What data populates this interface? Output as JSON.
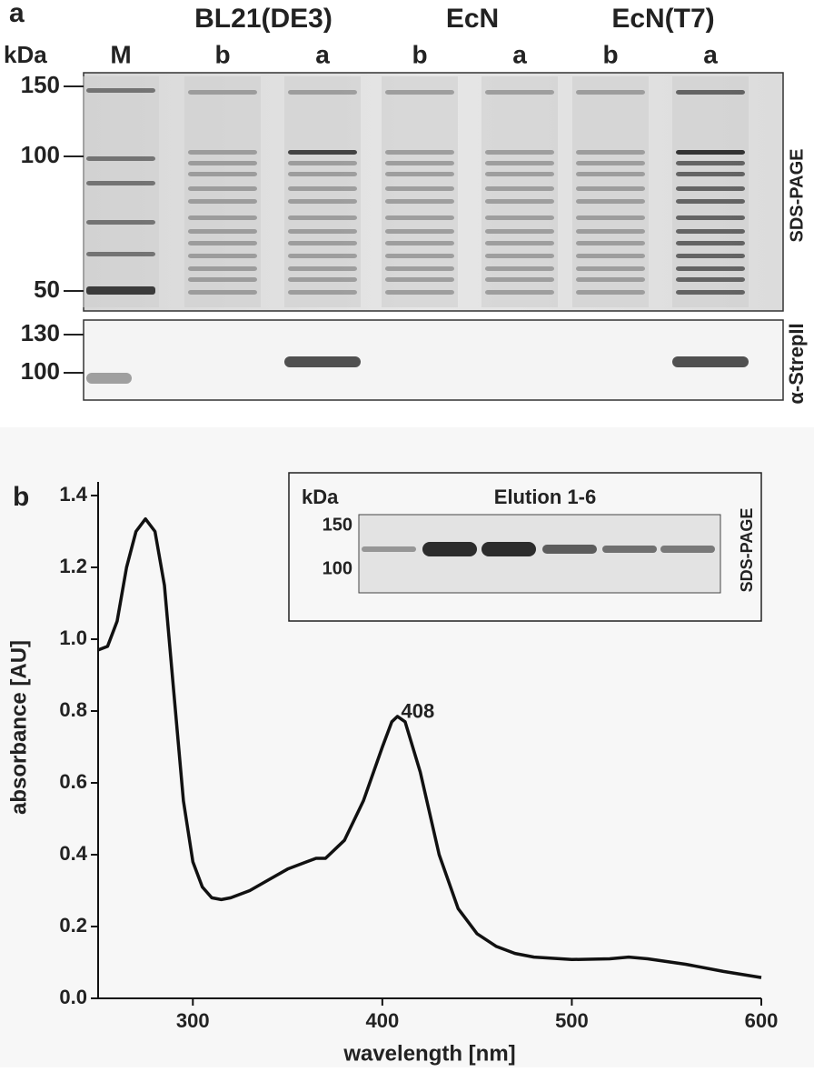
{
  "panel_a": {
    "label": "a",
    "strains": [
      "BL21(DE3)",
      "EcN",
      "EcN(T7)"
    ],
    "kda": "kDa",
    "lanes": [
      "M",
      "b",
      "a",
      "b",
      "a",
      "b",
      "a"
    ],
    "sds_markers": [
      150,
      100,
      50
    ],
    "western_markers": [
      130,
      100
    ],
    "sds_label": "SDS-PAGE",
    "western_label": "α-StrepII"
  },
  "panel_b": {
    "label": "b"
  },
  "inset": {
    "kda": "kDa",
    "title": "Elution 1-6",
    "markers": [
      150,
      100
    ],
    "side_label": "SDS-PAGE"
  },
  "chart_data": {
    "type": "line",
    "xlabel": "wavelength [nm]",
    "ylabel": "absorbance [AU]",
    "x": [
      250,
      255,
      260,
      265,
      270,
      275,
      280,
      285,
      290,
      295,
      300,
      305,
      310,
      315,
      320,
      330,
      340,
      350,
      360,
      365,
      370,
      380,
      390,
      400,
      405,
      408,
      412,
      420,
      430,
      440,
      450,
      460,
      470,
      480,
      500,
      520,
      530,
      540,
      560,
      580,
      600
    ],
    "values": [
      0.97,
      0.98,
      1.05,
      1.2,
      1.3,
      1.335,
      1.3,
      1.15,
      0.85,
      0.55,
      0.38,
      0.31,
      0.28,
      0.275,
      0.28,
      0.3,
      0.33,
      0.36,
      0.38,
      0.39,
      0.39,
      0.44,
      0.55,
      0.7,
      0.77,
      0.785,
      0.77,
      0.63,
      0.4,
      0.25,
      0.18,
      0.145,
      0.125,
      0.115,
      0.108,
      0.11,
      0.115,
      0.11,
      0.095,
      0.075,
      0.058
    ],
    "color": "#111111",
    "xlim": [
      250,
      600
    ],
    "xticks": [
      300,
      400,
      500,
      600
    ],
    "ylim": [
      0,
      1.4
    ],
    "yticks": [
      {
        "value": 0,
        "label": "0.0"
      },
      0.2,
      0.4,
      0.6,
      0.8,
      {
        "value": 1,
        "label": "1.0"
      },
      1.2,
      1.4
    ],
    "annotation": "408"
  }
}
